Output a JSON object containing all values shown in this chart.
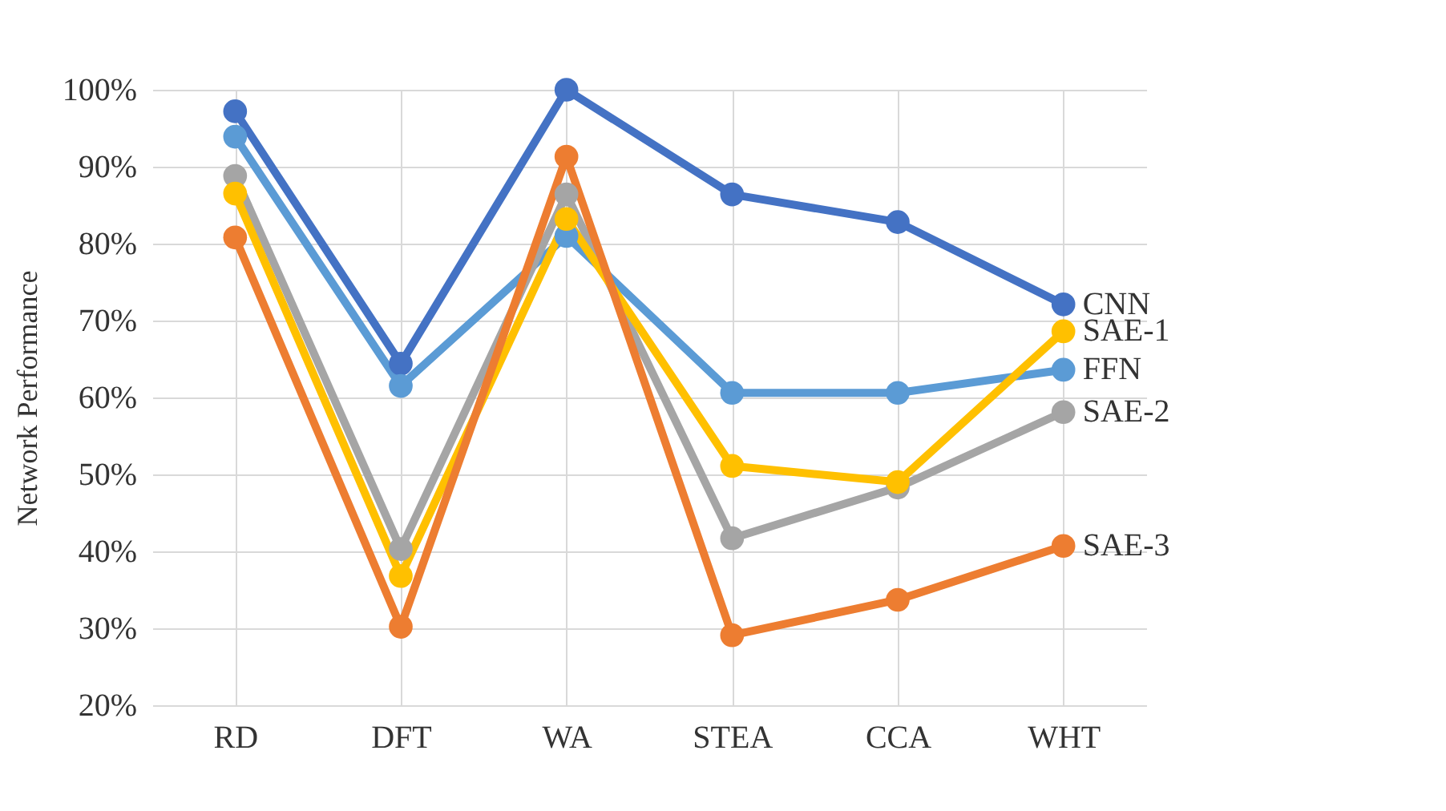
{
  "chart_data": {
    "type": "line",
    "ylabel": "Network Performance",
    "categories": [
      "RD",
      "DFT",
      "WA",
      "STEA",
      "CCA",
      "WHT"
    ],
    "series": [
      {
        "name": "CNN",
        "color": "#4472c4",
        "values": [
          97.2,
          64.4,
          100,
          86.4,
          82.8,
          72.1
        ]
      },
      {
        "name": "FFN",
        "color": "#5b9bd5",
        "values": [
          93.9,
          61.5,
          81,
          60.6,
          60.6,
          63.6
        ]
      },
      {
        "name": "SAE-2",
        "color": "#a5a5a5",
        "values": [
          88.8,
          40.3,
          86.4,
          41.7,
          48.3,
          58.1
        ]
      },
      {
        "name": "SAE-1",
        "color": "#ffc000",
        "values": [
          86.5,
          36.8,
          83.2,
          51.1,
          49.0,
          68.6
        ]
      },
      {
        "name": "SAE-3",
        "color": "#ed7d31",
        "values": [
          80.8,
          30.2,
          91.3,
          29.1,
          33.7,
          40.7
        ]
      }
    ],
    "ylim": [
      20,
      100
    ],
    "yticks": [
      {
        "value": 20,
        "label": "20%"
      },
      {
        "value": 30,
        "label": "30%"
      },
      {
        "value": 40,
        "label": "40%"
      },
      {
        "value": 50,
        "label": "50%"
      },
      {
        "value": 60,
        "label": "60%"
      },
      {
        "value": 70,
        "label": "70%"
      },
      {
        "value": 80,
        "label": "80%"
      },
      {
        "value": 90,
        "label": "90%"
      },
      {
        "value": 100,
        "label": "100%"
      }
    ],
    "grid": true,
    "legend": false,
    "marker": "circle",
    "line_style": "solid"
  }
}
